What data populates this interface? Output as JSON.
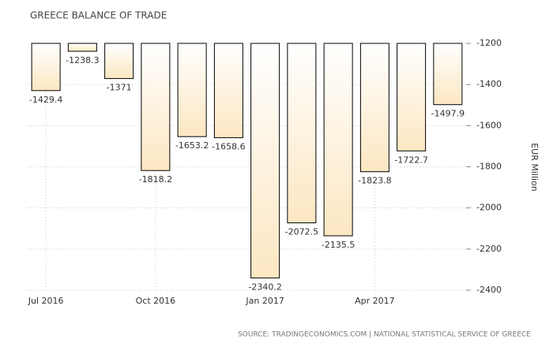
{
  "chart_data": {
    "type": "bar",
    "title": "GREECE BALANCE OF TRADE",
    "categories": [
      "Jul 2016",
      null,
      null,
      "Oct 2016",
      null,
      null,
      "Jan 2017",
      null,
      null,
      "Apr 2017",
      null,
      null
    ],
    "values": [
      -1429.4,
      -1238.3,
      -1371,
      -1818.2,
      -1653.2,
      -1658.6,
      -2340.2,
      -2072.5,
      -2135.5,
      -1823.8,
      -1722.7,
      -1497.9
    ],
    "color": "#fce7c2",
    "ylim": [
      -2400,
      -1200
    ],
    "yticks": [
      -1200,
      -1400,
      -1600,
      -1800,
      -2000,
      -2200,
      -2400
    ],
    "ylabel": "EUR Million",
    "grid": true,
    "source": "SOURCE: TRADINGECONOMICS.COM | NATIONAL STATISTICAL SERVICE OF GREECE"
  }
}
